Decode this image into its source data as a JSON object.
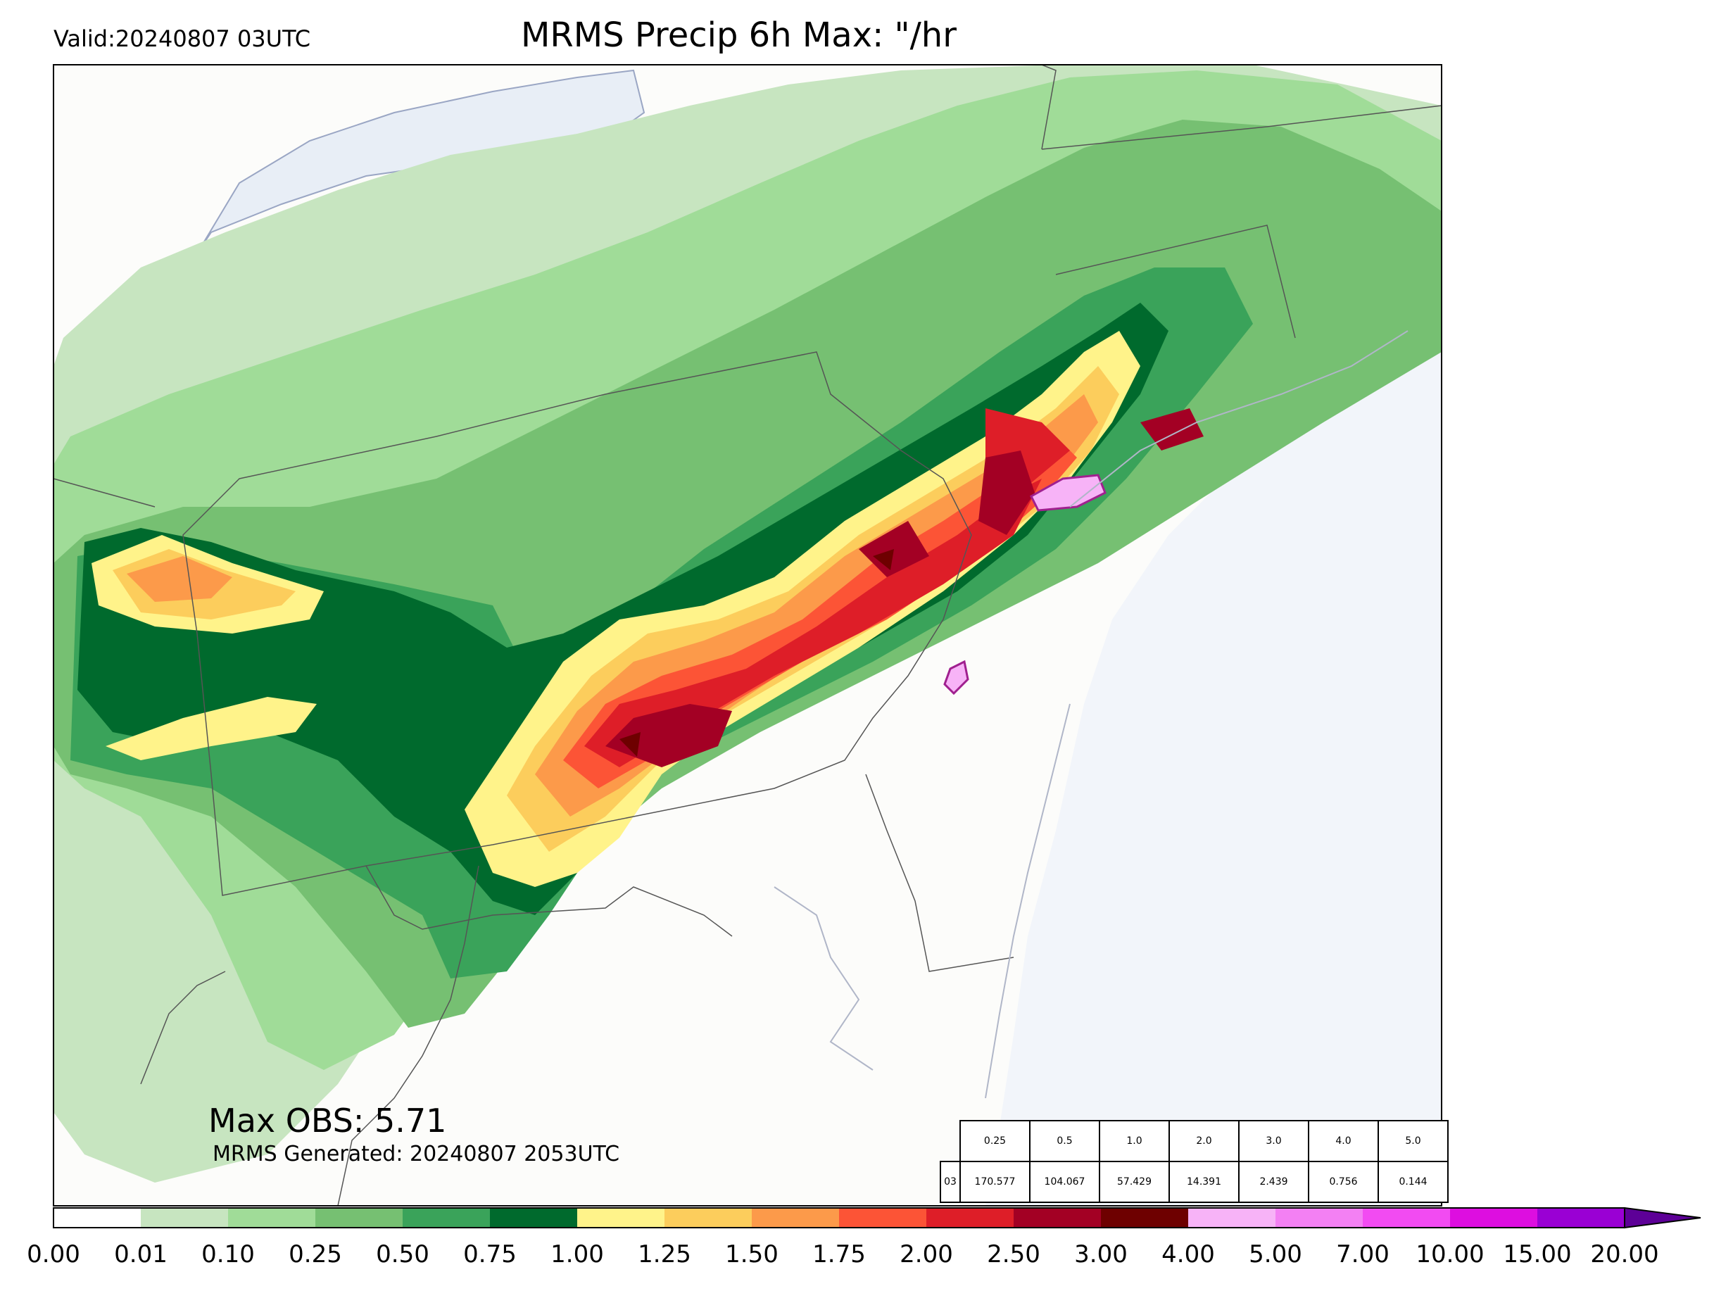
{
  "header": {
    "valid_label": "Valid:20240807 03UTC",
    "title": "MRMS Precip 6h Max: \"/hr"
  },
  "footer": {
    "max_obs": "Max OBS: 5.71",
    "generated": "MRMS Generated: 20240807 2053UTC"
  },
  "colorbar": {
    "ticks": [
      "0.00",
      "0.01",
      "0.10",
      "0.25",
      "0.50",
      "0.75",
      "1.00",
      "1.25",
      "1.50",
      "1.75",
      "2.00",
      "2.50",
      "3.00",
      "4.00",
      "5.00",
      "7.00",
      "10.00",
      "15.00",
      "20.00"
    ],
    "colors": [
      "#ffffff",
      "#c7e5c0",
      "#a0dc98",
      "#76c072",
      "#3aa35a",
      "#006a2d",
      "#fff38a",
      "#fccd5c",
      "#fc9a4a",
      "#fc5436",
      "#de1e28",
      "#a30024",
      "#6e0000",
      "#f7b3f7",
      "#f380f3",
      "#f24bf2",
      "#dd0ee0",
      "#9a00d4"
    ],
    "extend_color": "#5d0097"
  },
  "stats_table": {
    "thresholds": [
      "0.25",
      "0.5",
      "1.0",
      "2.0",
      "3.0",
      "4.0",
      "5.0"
    ],
    "row_label": "03",
    "values": [
      "170.577",
      "104.067",
      "57.429",
      "14.391",
      "2.439",
      "0.756",
      "0.144"
    ]
  },
  "map_colors": {
    "land": "#fcfcfa",
    "water": "#f2f5fa",
    "lake": "#e8eef6"
  }
}
